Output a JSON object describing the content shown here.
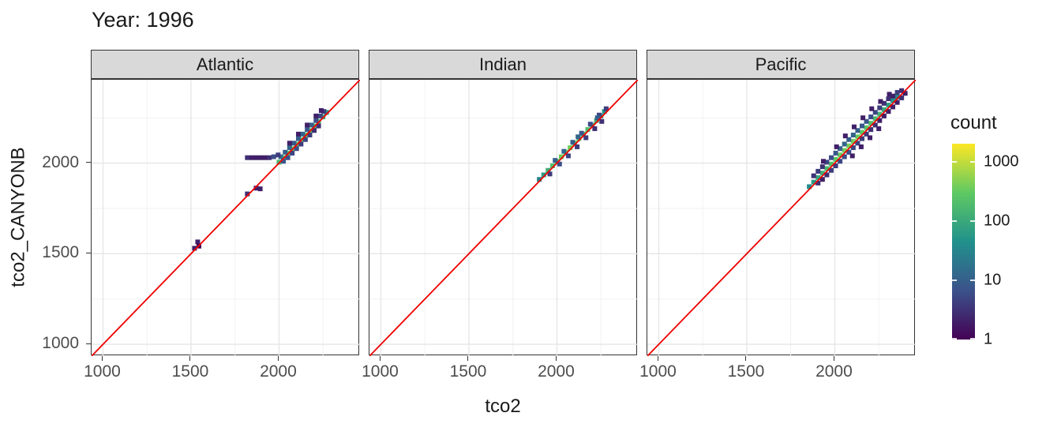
{
  "chart_data": {
    "type": "heatmap",
    "subtype": "2d-binned scatter (geom_bin2d) faceted by ocean, with y=x reference line",
    "title": "Year: 1996",
    "xlabel": "tco2",
    "ylabel": "tco2_CANYONB",
    "xlim": [
      935,
      2460
    ],
    "ylim": [
      935,
      2460
    ],
    "x_ticks": [
      1000,
      1500,
      2000
    ],
    "y_ticks": [
      1000,
      1500,
      2000
    ],
    "x_minor": [
      1250,
      1750,
      2250
    ],
    "grid": true,
    "reference_line": {
      "equation": "y = x",
      "color": "#ef0000"
    },
    "legend": {
      "title": "count",
      "position": "right",
      "scale": "log10",
      "range": [
        1,
        2000
      ],
      "ticks": [
        1000,
        100,
        10,
        1
      ],
      "colormap": "viridis"
    },
    "facets": [
      {
        "label": "Atlantic",
        "bins": [
          [
            2000,
            2005,
            150
          ],
          [
            2025,
            2030,
            250
          ],
          [
            2050,
            2055,
            300
          ],
          [
            2075,
            2080,
            350
          ],
          [
            2100,
            2105,
            320
          ],
          [
            2125,
            2130,
            300
          ],
          [
            2150,
            2155,
            350
          ],
          [
            2175,
            2180,
            300
          ],
          [
            2200,
            2205,
            250
          ],
          [
            2225,
            2230,
            180
          ],
          [
            2250,
            2255,
            120
          ],
          [
            2270,
            2280,
            60
          ],
          [
            2010,
            2035,
            15
          ],
          [
            2035,
            2060,
            10
          ],
          [
            2060,
            2085,
            12
          ],
          [
            2085,
            2110,
            8
          ],
          [
            2110,
            2135,
            10
          ],
          [
            2135,
            2160,
            12
          ],
          [
            2160,
            2185,
            8
          ],
          [
            2185,
            2210,
            10
          ],
          [
            2210,
            2235,
            6
          ],
          [
            2235,
            2260,
            5
          ],
          [
            2255,
            2285,
            4
          ],
          [
            2025,
            2010,
            8
          ],
          [
            2050,
            2030,
            6
          ],
          [
            2075,
            2055,
            5
          ],
          [
            2100,
            2080,
            6
          ],
          [
            2125,
            2105,
            4
          ],
          [
            2150,
            2130,
            5
          ],
          [
            2175,
            2155,
            4
          ],
          [
            2200,
            2180,
            3
          ],
          [
            2225,
            2205,
            3
          ],
          [
            2060,
            2110,
            2
          ],
          [
            2110,
            2160,
            2
          ],
          [
            2160,
            2210,
            2
          ],
          [
            2210,
            2260,
            2
          ],
          [
            2240,
            2290,
            2
          ],
          [
            1820,
            2030,
            3
          ],
          [
            1845,
            2030,
            2
          ],
          [
            1870,
            2030,
            2
          ],
          [
            1895,
            2030,
            2
          ],
          [
            1920,
            2030,
            2
          ],
          [
            1945,
            2030,
            3
          ],
          [
            1970,
            2035,
            6
          ],
          [
            1995,
            2045,
            4
          ],
          [
            1820,
            1830,
            3
          ],
          [
            1870,
            1862,
            2
          ],
          [
            1893,
            1858,
            2
          ],
          [
            1520,
            1530,
            2
          ],
          [
            1538,
            1565,
            2
          ],
          [
            1545,
            1542,
            1
          ]
        ]
      },
      {
        "label": "Indian",
        "bins": [
          [
            1900,
            1910,
            30
          ],
          [
            1925,
            1935,
            60
          ],
          [
            1950,
            1960,
            120
          ],
          [
            1975,
            1985,
            200
          ],
          [
            2000,
            2010,
            300
          ],
          [
            2025,
            2035,
            350
          ],
          [
            2050,
            2060,
            400
          ],
          [
            2075,
            2085,
            380
          ],
          [
            2100,
            2110,
            320
          ],
          [
            2125,
            2135,
            280
          ],
          [
            2150,
            2160,
            240
          ],
          [
            2175,
            2185,
            200
          ],
          [
            2200,
            2210,
            160
          ],
          [
            2225,
            2235,
            120
          ],
          [
            2250,
            2260,
            80
          ],
          [
            2270,
            2285,
            50
          ],
          [
            1960,
            1940,
            4
          ],
          [
            1990,
            2015,
            10
          ],
          [
            2015,
            1995,
            6
          ],
          [
            2040,
            2065,
            12
          ],
          [
            2065,
            2040,
            5
          ],
          [
            2090,
            2115,
            10
          ],
          [
            2115,
            2090,
            4
          ],
          [
            2140,
            2165,
            8
          ],
          [
            2165,
            2140,
            4
          ],
          [
            2190,
            2215,
            6
          ],
          [
            2215,
            2190,
            3
          ],
          [
            2240,
            2265,
            5
          ],
          [
            2255,
            2230,
            3
          ],
          [
            2280,
            2300,
            4
          ],
          [
            2230,
            2250,
            10
          ],
          [
            2120,
            2145,
            12
          ]
        ]
      },
      {
        "label": "Pacific",
        "bins": [
          [
            1855,
            1870,
            40
          ],
          [
            1880,
            1895,
            60
          ],
          [
            1905,
            1920,
            90
          ],
          [
            1930,
            1945,
            120
          ],
          [
            1955,
            1970,
            160
          ],
          [
            1980,
            1995,
            220
          ],
          [
            2005,
            2020,
            280
          ],
          [
            2030,
            2045,
            340
          ],
          [
            2055,
            2070,
            380
          ],
          [
            2080,
            2095,
            400
          ],
          [
            2105,
            2120,
            380
          ],
          [
            2130,
            2145,
            350
          ],
          [
            2155,
            2170,
            300
          ],
          [
            2180,
            2195,
            260
          ],
          [
            2205,
            2220,
            220
          ],
          [
            2230,
            2245,
            180
          ],
          [
            2255,
            2270,
            140
          ],
          [
            2280,
            2295,
            100
          ],
          [
            2305,
            2320,
            70
          ],
          [
            2330,
            2345,
            50
          ],
          [
            2355,
            2365,
            30
          ],
          [
            1880,
            1930,
            3
          ],
          [
            1905,
            1955,
            4
          ],
          [
            1930,
            1980,
            3
          ],
          [
            1955,
            2005,
            5
          ],
          [
            1980,
            2030,
            6
          ],
          [
            2005,
            2055,
            8
          ],
          [
            2030,
            2080,
            10
          ],
          [
            2055,
            2105,
            12
          ],
          [
            2080,
            2130,
            10
          ],
          [
            2105,
            2155,
            12
          ],
          [
            2130,
            2180,
            10
          ],
          [
            2155,
            2205,
            8
          ],
          [
            2180,
            2230,
            8
          ],
          [
            2205,
            2255,
            6
          ],
          [
            2230,
            2280,
            5
          ],
          [
            2255,
            2305,
            4
          ],
          [
            2280,
            2330,
            3
          ],
          [
            2305,
            2355,
            3
          ],
          [
            2330,
            2370,
            2
          ],
          [
            2355,
            2390,
            4
          ],
          [
            2380,
            2400,
            3
          ],
          [
            1905,
            1890,
            3
          ],
          [
            1930,
            1910,
            2
          ],
          [
            1955,
            1935,
            3
          ],
          [
            1980,
            1960,
            4
          ],
          [
            2005,
            1985,
            4
          ],
          [
            2030,
            2010,
            5
          ],
          [
            2055,
            2035,
            6
          ],
          [
            2080,
            2060,
            6
          ],
          [
            2105,
            2085,
            5
          ],
          [
            2130,
            2110,
            5
          ],
          [
            2155,
            2135,
            4
          ],
          [
            2180,
            2160,
            4
          ],
          [
            2205,
            2185,
            3
          ],
          [
            2230,
            2210,
            3
          ],
          [
            2255,
            2235,
            2
          ],
          [
            2280,
            2260,
            2
          ],
          [
            2305,
            2285,
            2
          ],
          [
            2330,
            2310,
            2
          ],
          [
            2355,
            2335,
            2
          ],
          [
            2380,
            2360,
            3
          ],
          [
            2400,
            2385,
            2
          ],
          [
            1935,
            2010,
            2
          ],
          [
            2010,
            2090,
            2
          ],
          [
            2060,
            2150,
            2
          ],
          [
            2110,
            2200,
            2
          ],
          [
            2160,
            2250,
            2
          ],
          [
            2210,
            2300,
            2
          ],
          [
            2260,
            2340,
            2
          ],
          [
            2310,
            2380,
            2
          ],
          [
            2100,
            2040,
            2
          ],
          [
            2150,
            2090,
            2
          ],
          [
            2200,
            2140,
            2
          ],
          [
            2250,
            2190,
            2
          ]
        ]
      }
    ]
  },
  "colors": {
    "background": "#ffffff",
    "strip_bg": "#d9d9d9",
    "panel_border": "#333333",
    "grid_major": "#e5e5e5",
    "grid_minor": "#f2f2f2",
    "ref_line": "#ef0000",
    "tick_text": "#4d4d4d",
    "text": "#1a1a1a",
    "viridis": [
      "#440154",
      "#3b528b",
      "#21918c",
      "#5ec962",
      "#fde725"
    ]
  }
}
